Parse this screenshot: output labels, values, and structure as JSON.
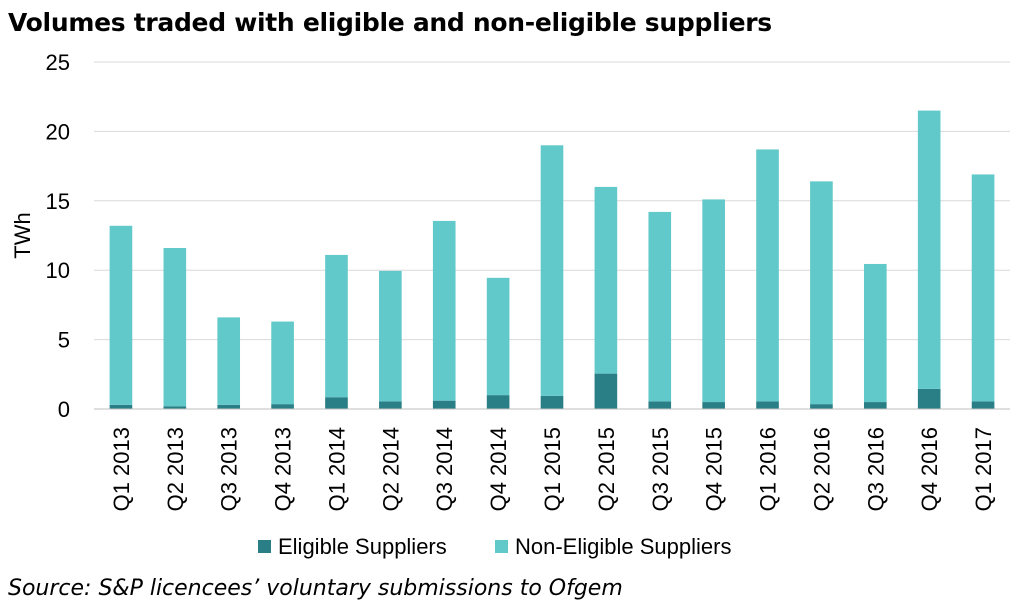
{
  "chart_data": {
    "type": "bar",
    "stacked": true,
    "title": "Volumes traded with eligible and non-eligible suppliers",
    "xlabel": "",
    "ylabel": "TWh",
    "ylim": [
      0,
      25
    ],
    "yticks": [
      0,
      5,
      10,
      15,
      20,
      25
    ],
    "grid": true,
    "legend": "bottom",
    "categories": [
      "Q1 2013",
      "Q2 2013",
      "Q3 2013",
      "Q4 2013",
      "Q1 2014",
      "Q2 2014",
      "Q3 2014",
      "Q4 2014",
      "Q1 2015",
      "Q2 2015",
      "Q3 2015",
      "Q4 2015",
      "Q1 2016",
      "Q2 2016",
      "Q3 2016",
      "Q4 2016",
      "Q1 2017"
    ],
    "series": [
      {
        "name": "Eligible Suppliers",
        "color": "#2a7f86",
        "values": [
          0.3,
          0.2,
          0.3,
          0.35,
          0.85,
          0.55,
          0.6,
          1.0,
          0.95,
          2.55,
          0.55,
          0.5,
          0.55,
          0.35,
          0.5,
          1.45,
          0.55
        ]
      },
      {
        "name": "Non-Eligible Suppliers",
        "color": "#62c9cb",
        "values": [
          12.9,
          11.4,
          6.3,
          5.95,
          10.25,
          9.4,
          12.95,
          8.45,
          18.05,
          13.45,
          13.65,
          14.6,
          18.15,
          16.05,
          9.95,
          20.05,
          16.35
        ]
      }
    ],
    "gridline_color": "#d9d9d9"
  },
  "source": "Source: S&P licencees’ voluntary submissions to Ofgem"
}
